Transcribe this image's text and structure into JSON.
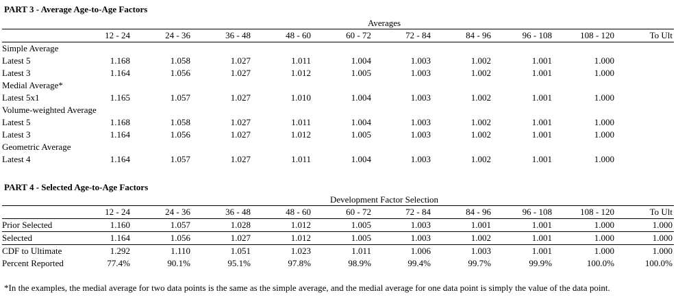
{
  "part3": {
    "title": "PART 3 - Average Age-to-Age Factors",
    "group_header": "Averages",
    "columns": [
      "12 - 24",
      "24 - 36",
      "36 - 48",
      "48 - 60",
      "60 - 72",
      "72 - 84",
      "84 - 96",
      "96 - 108",
      "108 - 120",
      "To Ult"
    ],
    "sections": [
      {
        "label": "Simple Average",
        "rows": [
          {
            "label": "Latest 5",
            "values": [
              "1.168",
              "1.058",
              "1.027",
              "1.011",
              "1.004",
              "1.003",
              "1.002",
              "1.001",
              "1.000",
              ""
            ]
          },
          {
            "label": "Latest 3",
            "values": [
              "1.164",
              "1.056",
              "1.027",
              "1.012",
              "1.005",
              "1.003",
              "1.002",
              "1.001",
              "1.000",
              ""
            ]
          }
        ]
      },
      {
        "label": "Medial Average*",
        "rows": [
          {
            "label": "Latest 5x1",
            "values": [
              "1.165",
              "1.057",
              "1.027",
              "1.010",
              "1.004",
              "1.003",
              "1.002",
              "1.001",
              "1.000",
              ""
            ]
          }
        ]
      },
      {
        "label": "Volume-weighted Average",
        "rows": [
          {
            "label": "Latest 5",
            "values": [
              "1.168",
              "1.058",
              "1.027",
              "1.011",
              "1.004",
              "1.003",
              "1.002",
              "1.001",
              "1.000",
              ""
            ]
          },
          {
            "label": "Latest 3",
            "values": [
              "1.164",
              "1.056",
              "1.027",
              "1.012",
              "1.005",
              "1.003",
              "1.002",
              "1.001",
              "1.000",
              ""
            ]
          }
        ]
      },
      {
        "label": "Geometric Average",
        "rows": [
          {
            "label": "Latest 4",
            "values": [
              "1.164",
              "1.057",
              "1.027",
              "1.011",
              "1.004",
              "1.003",
              "1.002",
              "1.001",
              "1.000",
              ""
            ]
          }
        ]
      }
    ]
  },
  "part4": {
    "title": "PART 4 - Selected Age-to-Age Factors",
    "group_header": "Development Factor Selection",
    "columns": [
      "12 - 24",
      "24 - 36",
      "36 - 48",
      "48 - 60",
      "60 - 72",
      "72 - 84",
      "84 - 96",
      "96 - 108",
      "108 - 120",
      "To Ult"
    ],
    "rows": [
      {
        "label": "Prior Selected",
        "values": [
          "1.160",
          "1.057",
          "1.028",
          "1.012",
          "1.005",
          "1.003",
          "1.001",
          "1.001",
          "1.000",
          "1.000"
        ]
      },
      {
        "label": "Selected",
        "values": [
          "1.164",
          "1.056",
          "1.027",
          "1.012",
          "1.005",
          "1.003",
          "1.002",
          "1.001",
          "1.000",
          "1.000"
        ]
      },
      {
        "label": "CDF to Ultimate",
        "values": [
          "1.292",
          "1.110",
          "1.051",
          "1.023",
          "1.011",
          "1.006",
          "1.003",
          "1.001",
          "1.000",
          "1.000"
        ]
      },
      {
        "label": "Percent Reported",
        "values": [
          "77.4%",
          "90.1%",
          "95.1%",
          "97.8%",
          "98.9%",
          "99.4%",
          "99.7%",
          "99.9%",
          "100.0%",
          "100.0%"
        ]
      }
    ]
  },
  "footnote": "*In the examples, the medial average for two data points is the same as the simple average, and the medial average for one data point is simply the value of the data point."
}
